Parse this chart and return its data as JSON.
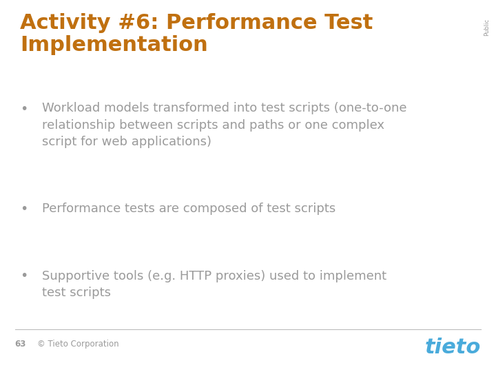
{
  "title_line1": "Activity #6: Performance Test",
  "title_line2": "Implementation",
  "title_color": "#C07010",
  "title_fontsize": 22,
  "bullet_color": "#9A9A9A",
  "bullet_fontsize": 13,
  "bullets": [
    "Workload models transformed into test scripts (one-to-one\nrelationship between scripts and paths or one complex\nscript for web applications)",
    "Performance tests are composed of test scripts",
    "Supportive tools (e.g. HTTP proxies) used to implement\ntest scripts"
  ],
  "footer_left_number": "63",
  "footer_left_text": "© Tieto Corporation",
  "footer_text_color": "#9A9A9A",
  "tieto_color": "#4AABDB",
  "publio_text": "Public",
  "publio_color": "#9A9A9A",
  "background_color": "#FFFFFF",
  "separator_color": "#BBBBBB",
  "bullet_symbol": "•"
}
